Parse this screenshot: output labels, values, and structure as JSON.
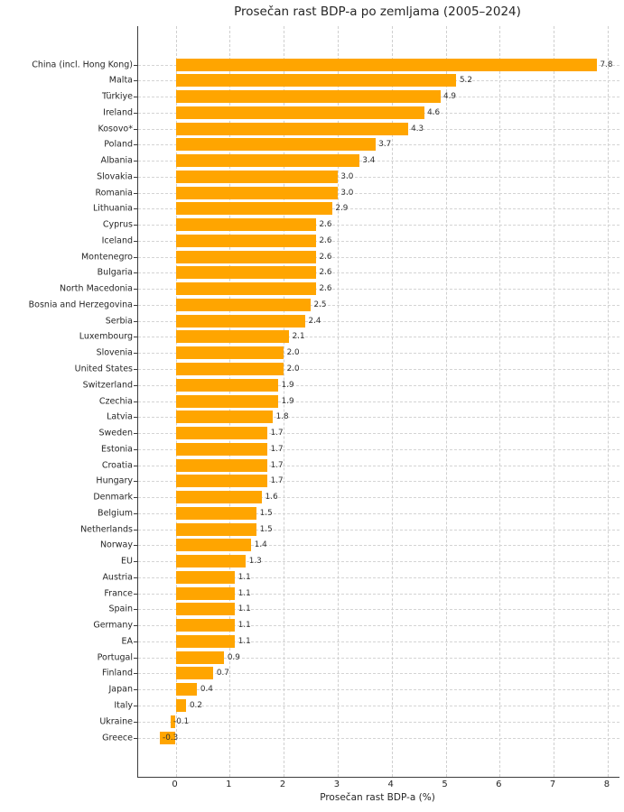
{
  "chart_data": {
    "type": "bar",
    "orientation": "horizontal",
    "title": "Prosečan rast BDP-a po zemljama (2005–2024)",
    "xlabel": "Prosečan rast BDP-a (%)",
    "ylabel": "",
    "xticks": [
      0,
      1,
      2,
      3,
      4,
      5,
      6,
      7,
      8
    ],
    "xlim": [
      -0.7,
      8.22
    ],
    "grid": true,
    "grid_style": "dashed",
    "legend": false,
    "bar_color": "#FFA500",
    "grid_color": "#d0d0d0",
    "spine_color": "#3d3d3d",
    "text_color": "#262626",
    "background_color": "#ffffff",
    "value_label_decimals": 1,
    "categories": [
      "China (incl. Hong Kong)",
      "Malta",
      "Türkiye",
      "Ireland",
      "Kosovo*",
      "Poland",
      "Albania",
      "Slovakia",
      "Romania",
      "Lithuania",
      "Cyprus",
      "Iceland",
      "Montenegro",
      "Bulgaria",
      "North Macedonia",
      "Bosnia and Herzegovina",
      "Serbia",
      "Luxembourg",
      "Slovenia",
      "United States",
      "Switzerland",
      "Czechia",
      "Latvia",
      "Sweden",
      "Estonia",
      "Croatia",
      "Hungary",
      "Denmark",
      "Belgium",
      "Netherlands",
      "Norway",
      "EU",
      "Austria",
      "France",
      "Spain",
      "Germany",
      "EA",
      "Portugal",
      "Finland",
      "Japan",
      "Italy",
      "Ukraine",
      "Greece"
    ],
    "values": [
      7.8,
      5.2,
      4.9,
      4.6,
      4.3,
      3.7,
      3.4,
      3.0,
      3.0,
      2.9,
      2.6,
      2.6,
      2.6,
      2.6,
      2.6,
      2.5,
      2.4,
      2.1,
      2.0,
      2.0,
      1.9,
      1.9,
      1.8,
      1.7,
      1.7,
      1.7,
      1.7,
      1.6,
      1.5,
      1.5,
      1.4,
      1.3,
      1.1,
      1.1,
      1.1,
      1.1,
      1.1,
      0.9,
      0.7,
      0.4,
      0.2,
      -0.1,
      -0.3
    ]
  }
}
